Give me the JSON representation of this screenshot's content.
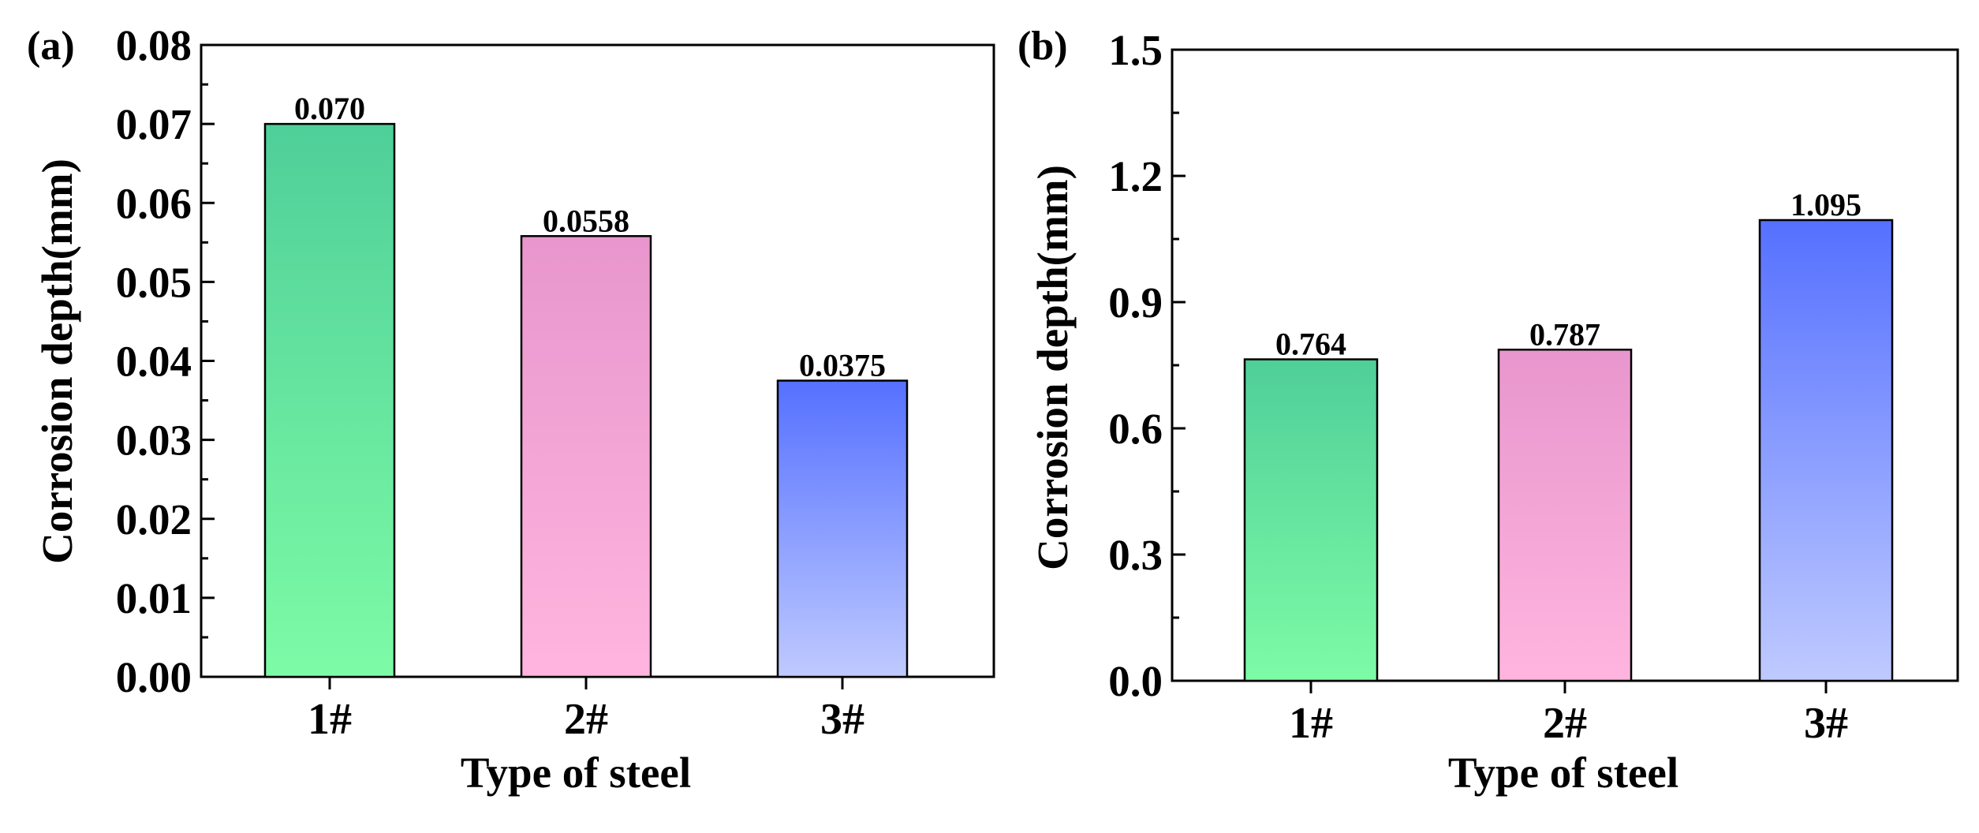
{
  "colors": {
    "green_top": "#4fcf99",
    "green_bottom": "#7dfba6",
    "pink_top": "#e896cd",
    "pink_bottom": "#ffb5df",
    "blue_top": "#5570ff",
    "blue_bottom": "#bfcaff"
  },
  "chart_data": [
    {
      "type": "bar",
      "panel_label": "(a)",
      "categories": [
        "1#",
        "2#",
        "3#"
      ],
      "values": [
        0.07,
        0.0558,
        0.0375
      ],
      "value_labels": [
        "0.070",
        "0.0558",
        "0.0375"
      ],
      "bar_colors": [
        "green",
        "pink",
        "blue"
      ],
      "xlabel": "Type of steel",
      "ylabel": "Corrosion depth(mm)",
      "ylim": [
        0,
        0.08
      ],
      "yticks": [
        0.0,
        0.01,
        0.02,
        0.03,
        0.04,
        0.05,
        0.06,
        0.07,
        0.08
      ],
      "ytick_labels": [
        "0.00",
        "0.01",
        "0.02",
        "0.03",
        "0.04",
        "0.05",
        "0.06",
        "0.07",
        "0.08"
      ],
      "grid": false
    },
    {
      "type": "bar",
      "panel_label": "(b)",
      "categories": [
        "1#",
        "2#",
        "3#"
      ],
      "values": [
        0.764,
        0.787,
        1.095
      ],
      "value_labels": [
        "0.764",
        "0.787",
        "1.095"
      ],
      "bar_colors": [
        "green",
        "pink",
        "blue"
      ],
      "xlabel": "Type of steel",
      "ylabel": "Corrosion depth(mm)",
      "ylim": [
        0,
        1.5
      ],
      "yticks": [
        0.0,
        0.3,
        0.6,
        0.9,
        1.2,
        1.5
      ],
      "ytick_labels": [
        "0.0",
        "0.3",
        "0.6",
        "0.9",
        "1.2",
        "1.5"
      ],
      "grid": false
    }
  ]
}
